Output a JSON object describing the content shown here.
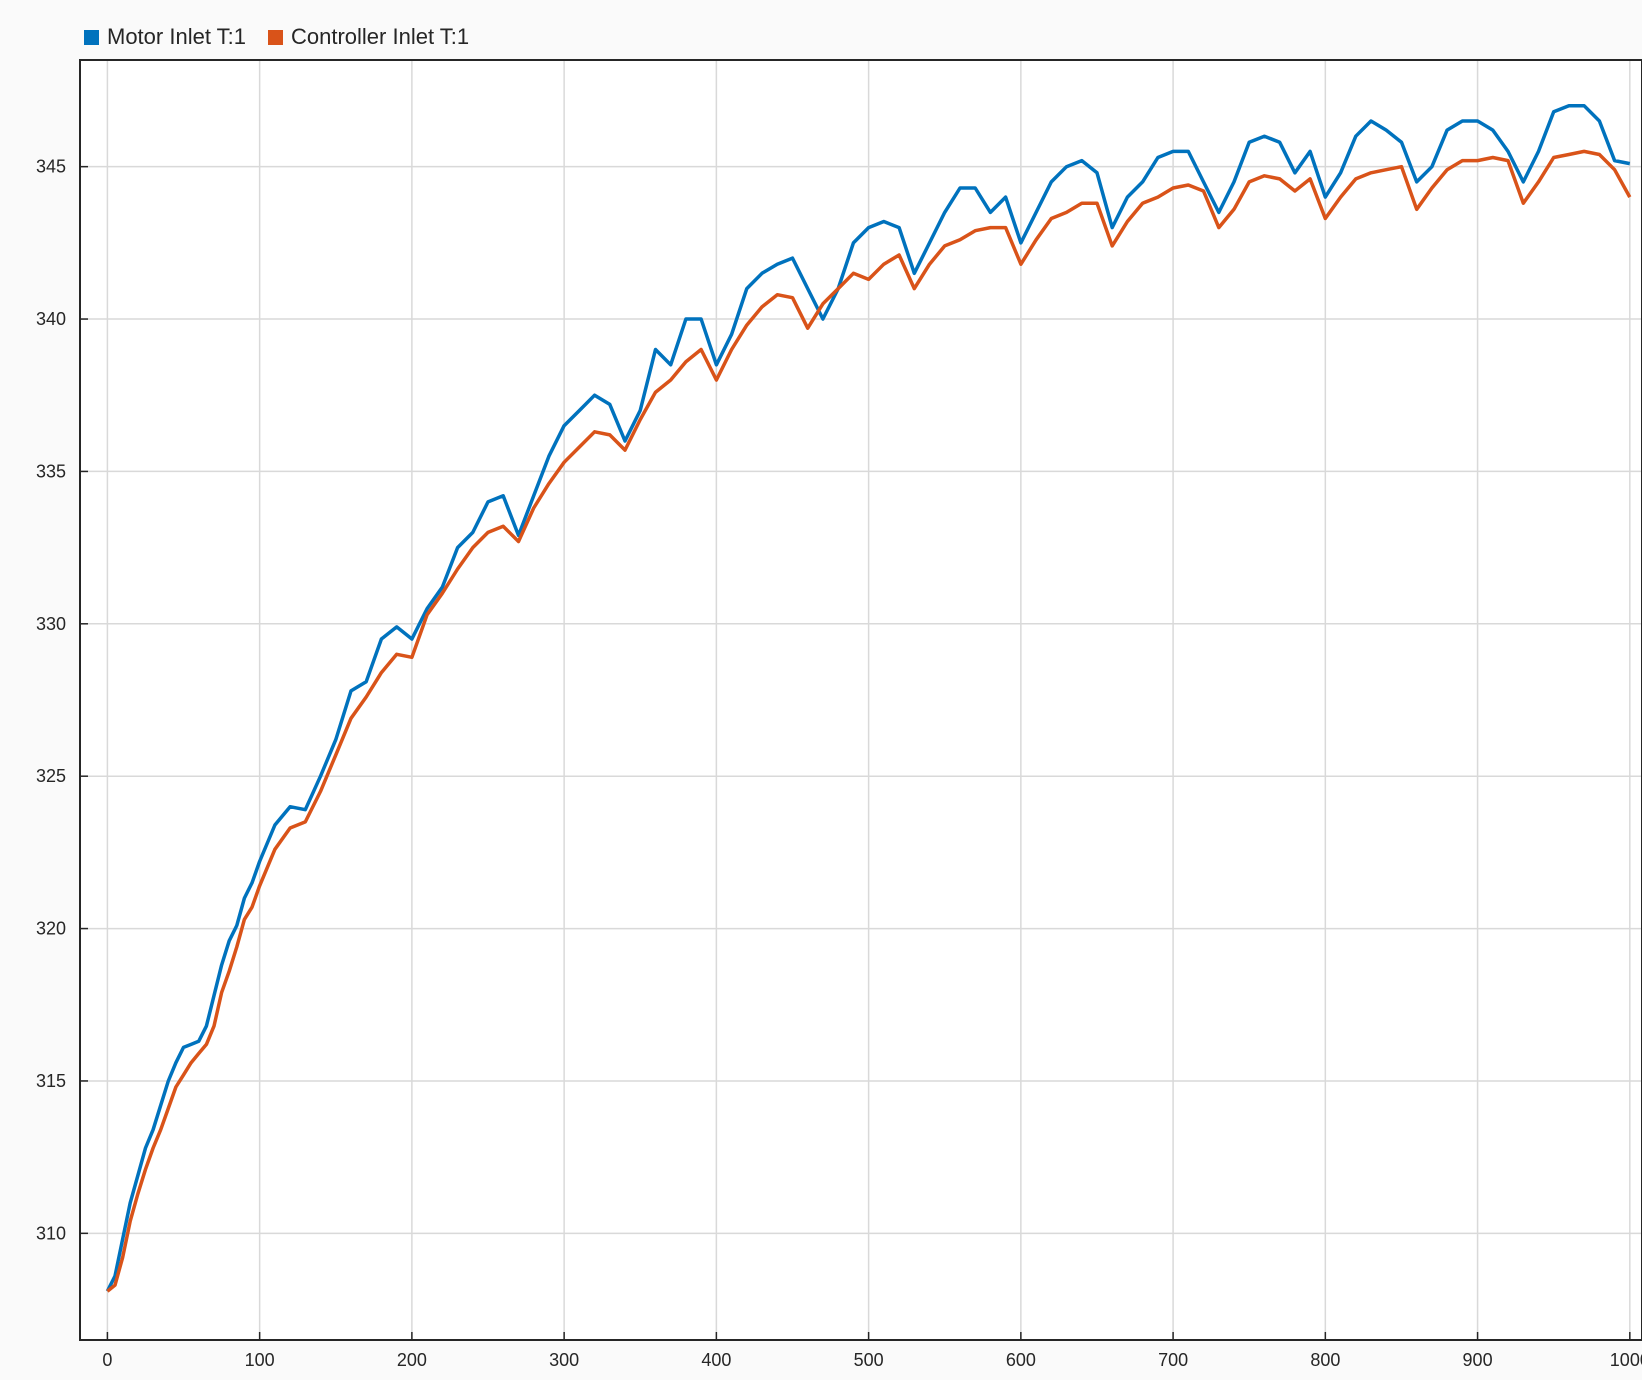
{
  "chart_data": {
    "type": "line",
    "title": "",
    "xlabel": "",
    "ylabel": "",
    "xlim": [
      -18,
      1008
    ],
    "ylim": [
      306.5,
      348.5
    ],
    "xticks": [
      0,
      100,
      200,
      300,
      400,
      500,
      600,
      700,
      800,
      900,
      1000
    ],
    "yticks": [
      310,
      315,
      320,
      325,
      330,
      335,
      340,
      345
    ],
    "grid": true,
    "legend_position": "top-left",
    "series": [
      {
        "name": "Motor Inlet T:1",
        "color": "#0072bd",
        "x": [
          0,
          5,
          10,
          15,
          20,
          25,
          30,
          35,
          40,
          45,
          50,
          55,
          60,
          65,
          70,
          75,
          80,
          85,
          90,
          95,
          100,
          110,
          120,
          130,
          140,
          150,
          160,
          170,
          180,
          190,
          200,
          210,
          220,
          230,
          240,
          250,
          260,
          270,
          280,
          290,
          300,
          310,
          320,
          330,
          340,
          350,
          360,
          370,
          380,
          390,
          400,
          410,
          420,
          430,
          440,
          450,
          460,
          470,
          480,
          490,
          500,
          510,
          520,
          530,
          540,
          550,
          560,
          570,
          580,
          590,
          600,
          610,
          620,
          630,
          640,
          650,
          660,
          670,
          680,
          690,
          700,
          710,
          720,
          730,
          740,
          750,
          760,
          770,
          780,
          790,
          800,
          810,
          820,
          830,
          840,
          850,
          860,
          870,
          880,
          890,
          900,
          910,
          920,
          930,
          940,
          950,
          960,
          970,
          980,
          990,
          1000
        ],
        "y": [
          308.1,
          308.6,
          309.8,
          311.0,
          311.9,
          312.8,
          313.4,
          314.2,
          315.0,
          315.6,
          316.1,
          316.2,
          316.3,
          316.8,
          317.8,
          318.8,
          319.6,
          320.1,
          321.0,
          321.5,
          322.2,
          323.4,
          324.0,
          323.9,
          325.0,
          326.2,
          327.8,
          328.1,
          329.5,
          329.9,
          329.5,
          330.5,
          331.2,
          332.5,
          333.0,
          334.0,
          334.2,
          332.9,
          334.2,
          335.5,
          336.5,
          337.0,
          337.5,
          337.2,
          336.0,
          337.0,
          339.0,
          338.5,
          340.0,
          340.0,
          338.5,
          339.5,
          341.0,
          341.5,
          341.8,
          342.0,
          341.0,
          340.0,
          341.0,
          342.5,
          343.0,
          343.2,
          343.0,
          341.5,
          342.5,
          343.5,
          344.3,
          344.3,
          343.5,
          344.0,
          342.5,
          343.5,
          344.5,
          345.0,
          345.2,
          344.8,
          343.0,
          344.0,
          344.5,
          345.3,
          345.5,
          345.5,
          344.5,
          343.5,
          344.5,
          345.8,
          346.0,
          345.8,
          344.8,
          345.5,
          344.0,
          344.8,
          346.0,
          346.5,
          346.2,
          345.8,
          344.5,
          345.0,
          346.2,
          346.5,
          346.5,
          346.2,
          345.5,
          344.5,
          345.5,
          346.8,
          347.0,
          347.0,
          346.5,
          345.2,
          345.1
        ]
      },
      {
        "name": "Controller Inlet T:1",
        "color": "#d95319",
        "x": [
          0,
          5,
          10,
          15,
          20,
          25,
          30,
          35,
          40,
          45,
          50,
          55,
          60,
          65,
          70,
          75,
          80,
          85,
          90,
          95,
          100,
          110,
          120,
          130,
          140,
          150,
          160,
          170,
          180,
          190,
          200,
          210,
          220,
          230,
          240,
          250,
          260,
          270,
          280,
          290,
          300,
          310,
          320,
          330,
          340,
          350,
          360,
          370,
          380,
          390,
          400,
          410,
          420,
          430,
          440,
          450,
          460,
          470,
          480,
          490,
          500,
          510,
          520,
          530,
          540,
          550,
          560,
          570,
          580,
          590,
          600,
          610,
          620,
          630,
          640,
          650,
          660,
          670,
          680,
          690,
          700,
          710,
          720,
          730,
          740,
          750,
          760,
          770,
          780,
          790,
          800,
          810,
          820,
          830,
          840,
          850,
          860,
          870,
          880,
          890,
          900,
          910,
          920,
          930,
          940,
          950,
          960,
          970,
          980,
          990,
          1000
        ],
        "y": [
          308.1,
          308.3,
          309.2,
          310.4,
          311.3,
          312.1,
          312.8,
          313.4,
          314.1,
          314.8,
          315.2,
          315.6,
          315.9,
          316.2,
          316.8,
          317.9,
          318.6,
          319.4,
          320.3,
          320.7,
          321.4,
          322.6,
          323.3,
          323.5,
          324.5,
          325.7,
          326.9,
          327.6,
          328.4,
          329.0,
          328.9,
          330.3,
          331.0,
          331.8,
          332.5,
          333.0,
          333.2,
          332.7,
          333.8,
          334.6,
          335.3,
          335.8,
          336.3,
          336.2,
          335.7,
          336.7,
          337.6,
          338.0,
          338.6,
          339.0,
          338.0,
          339.0,
          339.8,
          340.4,
          340.8,
          340.7,
          339.7,
          340.5,
          341.0,
          341.5,
          341.3,
          341.8,
          342.1,
          341.0,
          341.8,
          342.4,
          342.6,
          342.9,
          343.0,
          343.0,
          341.8,
          342.6,
          343.3,
          343.5,
          343.8,
          343.8,
          342.4,
          343.2,
          343.8,
          344.0,
          344.3,
          344.4,
          344.2,
          343.0,
          343.6,
          344.5,
          344.7,
          344.6,
          344.2,
          344.6,
          343.3,
          344.0,
          344.6,
          344.8,
          344.9,
          345.0,
          343.6,
          344.3,
          344.9,
          345.2,
          345.2,
          345.3,
          345.2,
          343.8,
          344.5,
          345.3,
          345.4,
          345.5,
          345.4,
          344.9,
          344.0
        ]
      }
    ]
  }
}
